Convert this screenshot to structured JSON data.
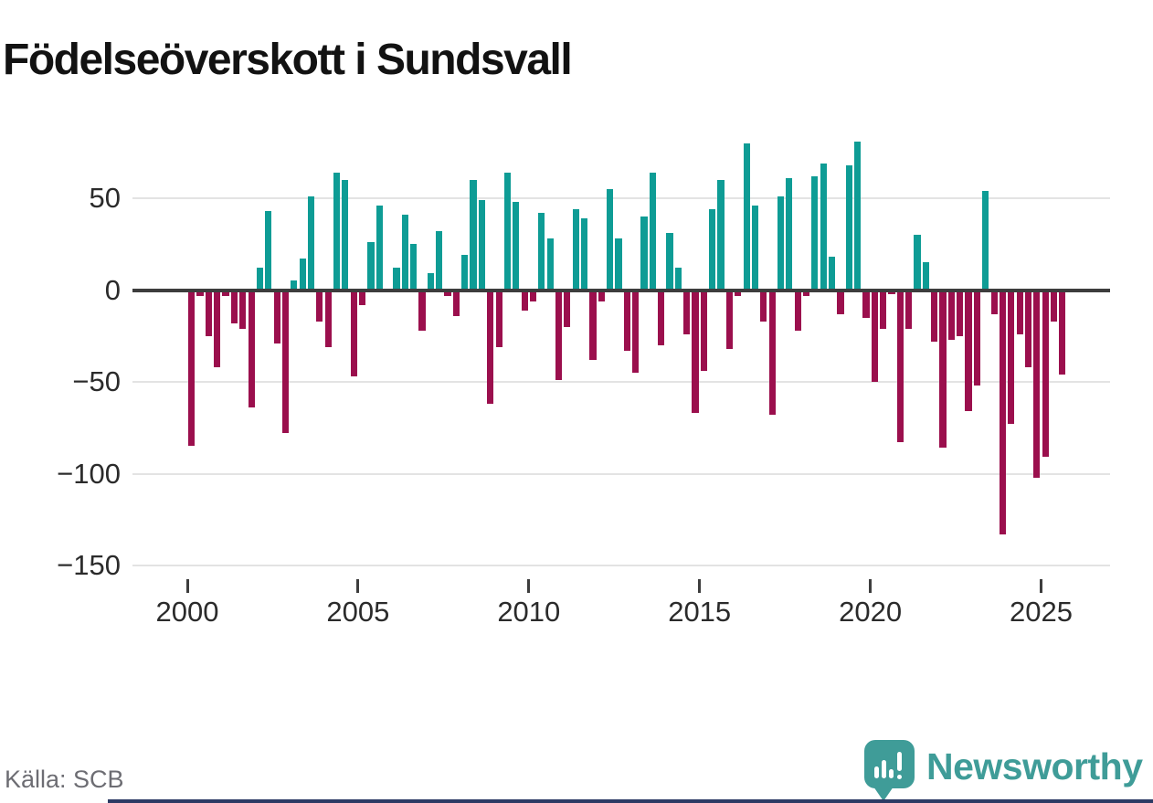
{
  "title": "Födelseöverskott i Sundsvall",
  "source": "Källa: SCB",
  "branding": {
    "wordmark": "Newsworthy"
  },
  "colors": {
    "positive_bar": "#0e9c95",
    "negative_bar": "#9b0f4d",
    "brand_teal": "#3f9c98",
    "zero_axis": "#3d3d3d",
    "gridline": "#e3e3e3",
    "title_text": "#121212",
    "tick_text": "#2b2b2b",
    "source_text": "#6d6d73",
    "bottom_bar": "#2c3a64"
  },
  "chart_data": {
    "type": "bar",
    "title": "Födelseöverskott i Sundsvall",
    "xlabel": "",
    "ylabel": "",
    "grid": "horizontal",
    "legend": "none",
    "ylim": [
      -150,
      90
    ],
    "y_ticks": [
      {
        "label": "50",
        "value": 50
      },
      {
        "label": "0",
        "value": 0
      },
      {
        "label": "−50",
        "value": -50
      },
      {
        "label": "−100",
        "value": -100
      },
      {
        "label": "−150",
        "value": -150
      }
    ],
    "x_ticks": [
      {
        "label": "2000",
        "value": 2000
      },
      {
        "label": "2005",
        "value": 2005
      },
      {
        "label": "2010",
        "value": 2010
      },
      {
        "label": "2015",
        "value": 2015
      },
      {
        "label": "2020",
        "value": 2020
      },
      {
        "label": "2025",
        "value": 2025
      }
    ],
    "frequency": "quarterly",
    "years": [
      {
        "year": 2000,
        "values": [
          -85,
          -3,
          -25,
          -42
        ]
      },
      {
        "year": 2001,
        "values": [
          -3,
          -18,
          -21,
          -64
        ]
      },
      {
        "year": 2002,
        "values": [
          12,
          43,
          -29,
          -78
        ]
      },
      {
        "year": 2003,
        "values": [
          5,
          17,
          51,
          -17
        ]
      },
      {
        "year": 2004,
        "values": [
          -31,
          64,
          60,
          -47
        ]
      },
      {
        "year": 2005,
        "values": [
          -8,
          26,
          46,
          0
        ]
      },
      {
        "year": 2006,
        "values": [
          12,
          41,
          25,
          -22
        ]
      },
      {
        "year": 2007,
        "values": [
          9,
          32,
          -3,
          -14
        ]
      },
      {
        "year": 2008,
        "values": [
          19,
          60,
          49,
          -62
        ]
      },
      {
        "year": 2009,
        "values": [
          -31,
          64,
          48,
          -11
        ]
      },
      {
        "year": 2010,
        "values": [
          -6,
          42,
          28,
          -49
        ]
      },
      {
        "year": 2011,
        "values": [
          -20,
          44,
          39,
          -38
        ]
      },
      {
        "year": 2012,
        "values": [
          -6,
          55,
          28,
          -33
        ]
      },
      {
        "year": 2013,
        "values": [
          -45,
          40,
          64,
          -30
        ]
      },
      {
        "year": 2014,
        "values": [
          31,
          12,
          -24,
          -67
        ]
      },
      {
        "year": 2015,
        "values": [
          -44,
          44,
          60,
          -32
        ]
      },
      {
        "year": 2016,
        "values": [
          -3,
          80,
          46,
          -17
        ]
      },
      {
        "year": 2017,
        "values": [
          -68,
          51,
          61,
          -22
        ]
      },
      {
        "year": 2018,
        "values": [
          -3,
          62,
          69,
          18
        ]
      },
      {
        "year": 2019,
        "values": [
          -13,
          68,
          81,
          -15
        ]
      },
      {
        "year": 2020,
        "values": [
          -50,
          -21,
          -2,
          -83
        ]
      },
      {
        "year": 2021,
        "values": [
          -21,
          30,
          15,
          -28
        ]
      },
      {
        "year": 2022,
        "values": [
          -86,
          -27,
          -25,
          -66
        ]
      },
      {
        "year": 2023,
        "values": [
          -52,
          54,
          -13,
          -133
        ]
      },
      {
        "year": 2024,
        "values": [
          -73,
          -24,
          -42,
          -102
        ]
      },
      {
        "year": 2025,
        "values": [
          -91,
          -17,
          -46
        ]
      }
    ]
  }
}
